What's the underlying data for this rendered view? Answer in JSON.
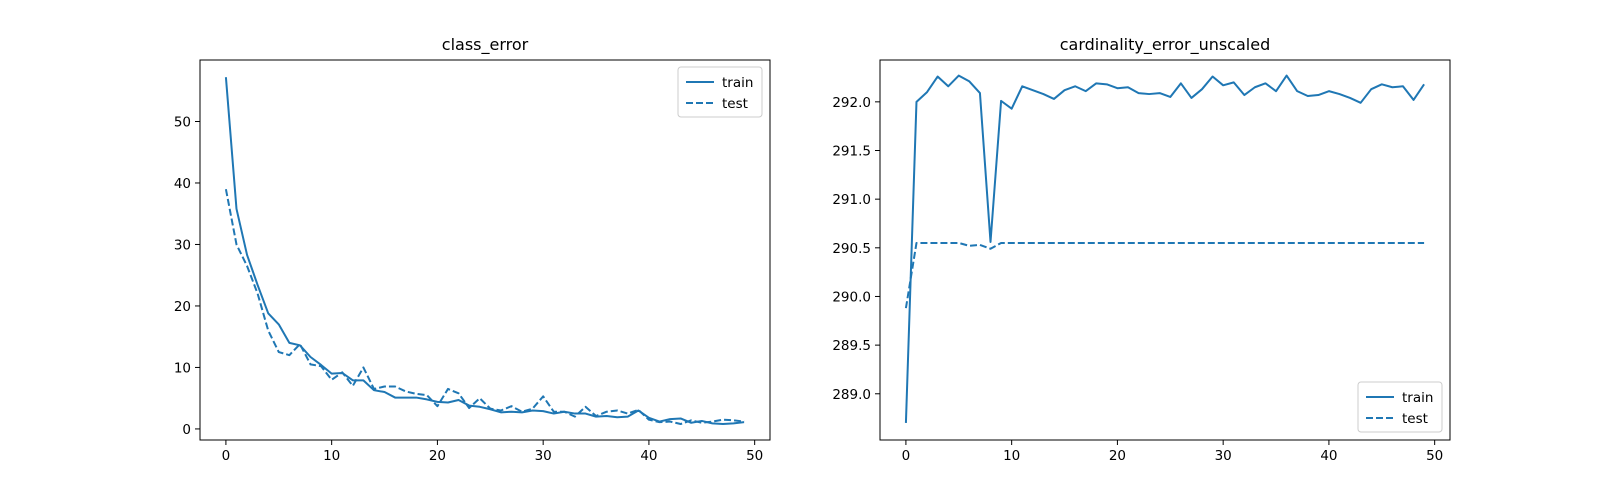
{
  "chart_data": [
    {
      "type": "line",
      "title": "class_error",
      "xlim": [
        -2.45,
        51.45
      ],
      "ylim": [
        -1.8,
        60.0
      ],
      "xticks": [
        0,
        10,
        20,
        30,
        40,
        50
      ],
      "yticks": [
        0,
        10,
        20,
        30,
        40,
        50
      ],
      "xtick_labels": [
        "0",
        "10",
        "20",
        "30",
        "40",
        "50"
      ],
      "ytick_labels": [
        "0",
        "10",
        "20",
        "30",
        "40",
        "50"
      ],
      "legend": "top-right",
      "color": "#1f77b4",
      "series": [
        {
          "name": "train",
          "style": "solid",
          "x": [
            0,
            1,
            2,
            3,
            4,
            5,
            6,
            7,
            8,
            9,
            10,
            11,
            12,
            13,
            14,
            15,
            16,
            17,
            18,
            19,
            20,
            21,
            22,
            23,
            24,
            25,
            26,
            27,
            28,
            29,
            30,
            31,
            32,
            33,
            34,
            35,
            36,
            37,
            38,
            39,
            40,
            41,
            42,
            43,
            44,
            45,
            46,
            47,
            48,
            49
          ],
          "values": [
            57.2,
            35.8,
            28.3,
            23.4,
            18.8,
            17.0,
            14.0,
            13.6,
            11.7,
            10.4,
            9.0,
            9.1,
            7.9,
            7.9,
            6.3,
            6.0,
            5.1,
            5.1,
            5.1,
            4.8,
            4.4,
            4.3,
            4.7,
            3.8,
            3.6,
            3.2,
            2.7,
            2.8,
            2.7,
            3.0,
            2.9,
            2.5,
            2.8,
            2.5,
            2.5,
            2.0,
            2.1,
            1.9,
            2.0,
            3.0,
            1.8,
            1.2,
            1.6,
            1.7,
            1.0,
            1.3,
            0.9,
            0.8,
            0.9,
            1.1
          ]
        },
        {
          "name": "test",
          "style": "dashed",
          "x": [
            0,
            1,
            2,
            3,
            4,
            5,
            6,
            7,
            8,
            9,
            10,
            11,
            12,
            13,
            14,
            15,
            16,
            17,
            18,
            19,
            20,
            21,
            22,
            23,
            24,
            25,
            26,
            27,
            28,
            29,
            30,
            31,
            32,
            33,
            34,
            35,
            36,
            37,
            38,
            39,
            40,
            41,
            42,
            43,
            44,
            45,
            46,
            47,
            48,
            49
          ],
          "values": [
            39.0,
            30.0,
            26.5,
            22.0,
            16.0,
            12.5,
            12.0,
            13.8,
            10.5,
            10.2,
            8.0,
            9.2,
            7.0,
            10.0,
            6.5,
            6.9,
            6.9,
            6.1,
            5.7,
            5.5,
            3.7,
            6.5,
            5.8,
            3.4,
            5.0,
            3.3,
            3.0,
            3.7,
            2.8,
            3.3,
            5.3,
            2.8,
            2.8,
            2.0,
            3.6,
            2.1,
            2.8,
            3.0,
            2.5,
            3.1,
            1.5,
            1.1,
            1.2,
            0.8,
            1.4,
            1.0,
            1.2,
            1.5,
            1.4,
            1.2
          ]
        }
      ]
    },
    {
      "type": "line",
      "title": "cardinality_error_unscaled",
      "xlim": [
        -2.45,
        51.45
      ],
      "ylim": [
        288.525,
        292.43
      ],
      "xticks": [
        0,
        10,
        20,
        30,
        40,
        50
      ],
      "yticks": [
        289.0,
        289.5,
        290.0,
        290.5,
        291.0,
        291.5,
        292.0
      ],
      "xtick_labels": [
        "0",
        "10",
        "20",
        "30",
        "40",
        "50"
      ],
      "ytick_labels": [
        "289.0",
        "289.5",
        "290.0",
        "290.5",
        "291.0",
        "291.5",
        "292.0"
      ],
      "legend": "bottom-right",
      "color": "#1f77b4",
      "series": [
        {
          "name": "train",
          "style": "solid",
          "x": [
            0,
            1,
            2,
            3,
            4,
            5,
            6,
            7,
            8,
            9,
            10,
            11,
            12,
            13,
            14,
            15,
            16,
            17,
            18,
            19,
            20,
            21,
            22,
            23,
            24,
            25,
            26,
            27,
            28,
            29,
            30,
            31,
            32,
            33,
            34,
            35,
            36,
            37,
            38,
            39,
            40,
            41,
            42,
            43,
            44,
            45,
            46,
            47,
            48,
            49
          ],
          "values": [
            288.7,
            292.0,
            292.1,
            292.26,
            292.16,
            292.27,
            292.21,
            292.09,
            290.56,
            292.01,
            291.93,
            292.16,
            292.12,
            292.08,
            292.03,
            292.12,
            292.16,
            292.11,
            292.19,
            292.18,
            292.14,
            292.15,
            292.09,
            292.08,
            292.09,
            292.05,
            292.19,
            292.04,
            292.13,
            292.26,
            292.17,
            292.2,
            292.07,
            292.15,
            292.19,
            292.11,
            292.27,
            292.11,
            292.06,
            292.07,
            292.11,
            292.08,
            292.04,
            291.99,
            292.13,
            292.18,
            292.15,
            292.16,
            292.02,
            292.18
          ]
        },
        {
          "name": "test",
          "style": "dashed",
          "x": [
            0,
            1,
            2,
            3,
            4,
            5,
            6,
            7,
            8,
            9,
            10,
            11,
            12,
            13,
            14,
            15,
            16,
            17,
            18,
            19,
            20,
            21,
            22,
            23,
            24,
            25,
            26,
            27,
            28,
            29,
            30,
            31,
            32,
            33,
            34,
            35,
            36,
            37,
            38,
            39,
            40,
            41,
            42,
            43,
            44,
            45,
            46,
            47,
            48,
            49
          ],
          "values": [
            289.88,
            290.55,
            290.55,
            290.55,
            290.55,
            290.55,
            290.52,
            290.53,
            290.49,
            290.55,
            290.55,
            290.55,
            290.55,
            290.55,
            290.55,
            290.55,
            290.55,
            290.55,
            290.55,
            290.55,
            290.55,
            290.55,
            290.55,
            290.55,
            290.55,
            290.55,
            290.55,
            290.55,
            290.55,
            290.55,
            290.55,
            290.55,
            290.55,
            290.55,
            290.55,
            290.55,
            290.55,
            290.55,
            290.55,
            290.55,
            290.55,
            290.55,
            290.55,
            290.55,
            290.55,
            290.55,
            290.55,
            290.55,
            290.55,
            290.55
          ]
        }
      ]
    }
  ]
}
